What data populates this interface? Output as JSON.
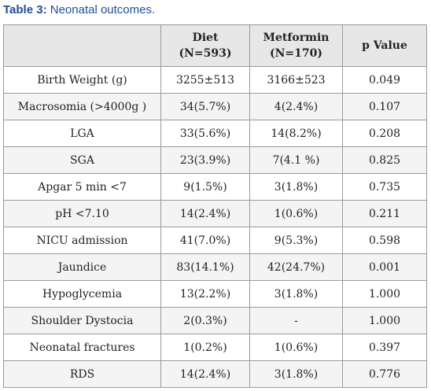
{
  "caption": {
    "label": "Table 3:",
    "text": " Neonatal outcomes."
  },
  "table": {
    "headers": {
      "outcome": "",
      "diet": {
        "line1": "Diet",
        "line2": "(N=593)"
      },
      "metformin": {
        "line1": "Metformin",
        "line2": "(N=170)"
      },
      "p_value": "p Value"
    },
    "rows": [
      {
        "outcome": "Birth Weight (g)",
        "diet": "3255±513",
        "metformin": "3166±523",
        "p": "0.049"
      },
      {
        "outcome": "Macrosomia (>4000g )",
        "diet": "34(5.7%)",
        "metformin": "4(2.4%)",
        "p": "0.107"
      },
      {
        "outcome": "LGA",
        "diet": "33(5.6%)",
        "metformin": "14(8.2%)",
        "p": "0.208"
      },
      {
        "outcome": "SGA",
        "diet": "23(3.9%)",
        "metformin": "7(4.1 %)",
        "p": "0.825"
      },
      {
        "outcome": "Apgar 5 min <7",
        "diet": "9(1.5%)",
        "metformin": "3(1.8%)",
        "p": "0.735"
      },
      {
        "outcome": "pH <7.10",
        "diet": "14(2.4%)",
        "metformin": "1(0.6%)",
        "p": "0.211"
      },
      {
        "outcome": "NICU admission",
        "diet": "41(7.0%)",
        "metformin": "9(5.3%)",
        "p": "0.598"
      },
      {
        "outcome": "Jaundice",
        "diet": "83(14.1%)",
        "metformin": "42(24.7%)",
        "p": "0.001"
      },
      {
        "outcome": "Hypoglycemia",
        "diet": "13(2.2%)",
        "metformin": "3(1.8%)",
        "p": "1.000"
      },
      {
        "outcome": "Shoulder Dystocia",
        "diet": "2(0.3%)",
        "metformin": "-",
        "p": "1.000"
      },
      {
        "outcome": "Neonatal fractures",
        "diet": "1(0.2%)",
        "metformin": "1(0.6%)",
        "p": "0.397"
      },
      {
        "outcome": "RDS",
        "diet": "14(2.4%)",
        "metformin": "3(1.8%)",
        "p": "0.776"
      }
    ]
  },
  "colors": {
    "caption": "#1f4e9a",
    "header_bg": "#e7e7e7",
    "border": "#9a9a9a",
    "alt_row_bg": "#f4f4f4"
  }
}
